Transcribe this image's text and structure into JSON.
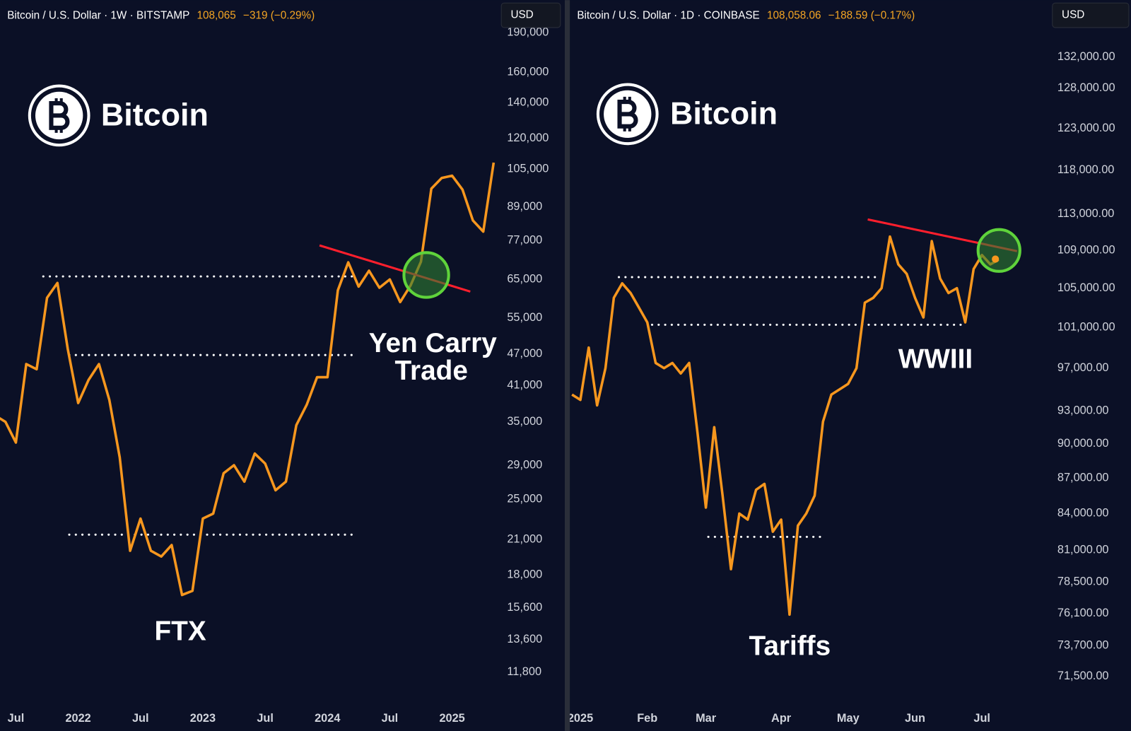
{
  "chart_data": [
    {
      "type": "line",
      "title": "Bitcoin / U.S. Dollar · 1W · BITSTAMP",
      "price": "108,065",
      "change": "−319 (−0.29%)",
      "currency": "USD",
      "watermark": "Bitcoin",
      "annotations": [
        "FTX",
        "Yen Carry",
        "Trade"
      ],
      "log_scale": true,
      "color": "#f7971e",
      "categories": [
        null,
        null,
        "Jul",
        null,
        null,
        null,
        null,
        null,
        "2022",
        null,
        null,
        null,
        null,
        null,
        "Jul",
        null,
        null,
        null,
        null,
        null,
        "2023",
        null,
        null,
        null,
        null,
        null,
        "Jul",
        null,
        null,
        null,
        null,
        null,
        "2024",
        null,
        null,
        null,
        null,
        null,
        "Jul",
        null,
        null,
        null,
        null,
        null,
        "2025",
        null,
        null,
        null,
        null
      ],
      "values": [
        36000,
        35000,
        32000,
        45000,
        44000,
        60000,
        64000,
        48000,
        38000,
        42000,
        45000,
        38500,
        30000,
        20000,
        23000,
        20000,
        19500,
        20500,
        16500,
        16800,
        23000,
        23500,
        28000,
        29000,
        27000,
        30500,
        29200,
        26000,
        27000,
        34500,
        37700,
        42500,
        42500,
        62000,
        70000,
        63000,
        67500,
        62700,
        65000,
        58900,
        63300,
        70200,
        96400,
        101000,
        102000,
        96000,
        84000,
        80000,
        108000
      ],
      "ylim": [
        10300,
        196000
      ],
      "yticks": [
        {
          "value": 190000,
          "label": "190,000"
        },
        {
          "value": 160000,
          "label": "160,000"
        },
        {
          "value": 140000,
          "label": "140,000"
        },
        {
          "value": 120000,
          "label": "120,000"
        },
        {
          "value": 105000,
          "label": "105,000"
        },
        {
          "value": 89000,
          "label": "89,000"
        },
        {
          "value": 77000,
          "label": "77,000"
        },
        {
          "value": 65000,
          "label": "65,000"
        },
        {
          "value": 55000,
          "label": "55,000"
        },
        {
          "value": 47000,
          "label": "47,000"
        },
        {
          "value": 41000,
          "label": "41,000"
        },
        {
          "value": 35000,
          "label": "35,000"
        },
        {
          "value": 29000,
          "label": "29,000"
        },
        {
          "value": 25000,
          "label": "25,000"
        },
        {
          "value": 21000,
          "label": "21,000"
        },
        {
          "value": 18000,
          "label": "18,000"
        },
        {
          "value": 15600,
          "label": "15,600"
        },
        {
          "value": 13600,
          "label": "13,600"
        },
        {
          "value": 11800,
          "label": "11,800"
        }
      ]
    },
    {
      "type": "line",
      "title": "Bitcoin / U.S. Dollar · 1D · COINBASE",
      "price": "108,058.06",
      "change": "−188.59 (−0.17%)",
      "currency": "USD",
      "watermark": "Bitcoin",
      "annotations": [
        "WWIII",
        "Tariffs"
      ],
      "log_scale": true,
      "color": "#f7971e",
      "categories": [
        null,
        "2025",
        null,
        null,
        null,
        null,
        null,
        null,
        null,
        "Feb",
        null,
        null,
        null,
        null,
        null,
        null,
        "Mar",
        null,
        null,
        null,
        null,
        null,
        null,
        null,
        null,
        "Apr",
        null,
        null,
        null,
        null,
        null,
        null,
        null,
        "May",
        null,
        null,
        null,
        null,
        null,
        null,
        null,
        "Jun",
        null,
        null,
        null,
        null,
        null,
        null,
        null,
        "Jul",
        null,
        null
      ],
      "values": [
        94500,
        94000,
        99000,
        93500,
        97000,
        104000,
        105500,
        104500,
        103000,
        101500,
        97500,
        97000,
        97500,
        96500,
        97500,
        91000,
        84500,
        91500,
        85500,
        79500,
        84000,
        83500,
        86000,
        86500,
        82500,
        83500,
        76000,
        83000,
        84000,
        85500,
        92000,
        94500,
        95000,
        95500,
        97000,
        103500,
        104000,
        105000,
        110500,
        107500,
        106500,
        104000,
        102000,
        110000,
        106000,
        104500,
        105000,
        101500,
        107000,
        108500,
        107500,
        108000
      ],
      "ylim": [
        69600,
        136200
      ],
      "yticks": [
        {
          "value": 132000,
          "label": "132,000.00"
        },
        {
          "value": 128000,
          "label": "128,000.00"
        },
        {
          "value": 123000,
          "label": "123,000.00"
        },
        {
          "value": 118000,
          "label": "118,000.00"
        },
        {
          "value": 113000,
          "label": "113,000.00"
        },
        {
          "value": 109000,
          "label": "109,000.00"
        },
        {
          "value": 105000,
          "label": "105,000.00"
        },
        {
          "value": 101000,
          "label": "101,000.00"
        },
        {
          "value": 97000,
          "label": "97,000.00"
        },
        {
          "value": 93000,
          "label": "93,000.00"
        },
        {
          "value": 90000,
          "label": "90,000.00"
        },
        {
          "value": 87000,
          "label": "87,000.00"
        },
        {
          "value": 84000,
          "label": "84,000.00"
        },
        {
          "value": 81000,
          "label": "81,000.00"
        },
        {
          "value": 78500,
          "label": "78,500.00"
        },
        {
          "value": 76100,
          "label": "76,100.00"
        },
        {
          "value": 73700,
          "label": "73,700.00"
        },
        {
          "value": 71500,
          "label": "71,500.00"
        }
      ]
    }
  ]
}
